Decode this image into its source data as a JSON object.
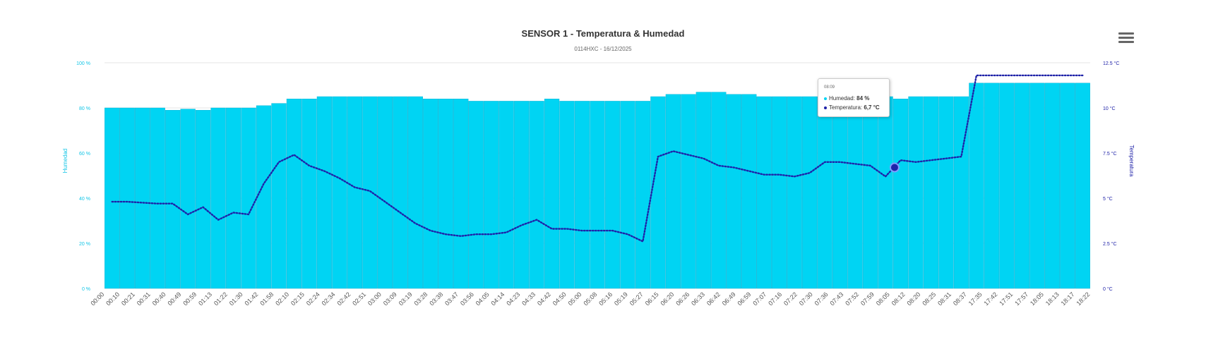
{
  "header": {
    "title": "SENSOR 1 - Temperatura & Humedad",
    "subtitle": "0114HXC - 16/12/2025",
    "menu_icon": "hamburger-menu-icon"
  },
  "colors": {
    "humidity": "#00d4f3",
    "humidity_border": "#0aaed1",
    "temperature": "#1f22a8",
    "left_axis_label": "#12c5e6",
    "right_axis_label": "#1f22a8",
    "grid": "#e6e6e6"
  },
  "tooltip": {
    "time": "08:09",
    "humidity_label": "Humedad:",
    "humidity_value": "84 %",
    "temperature_label": "Temperatura:",
    "temperature_value": "6,7 °C"
  },
  "chart_data": {
    "type": "bar",
    "xlabel": "",
    "ylabel": "Humedad",
    "y2label": "Temperatura",
    "ylim": [
      0,
      100
    ],
    "y2lim": [
      0,
      12.5
    ],
    "yticks": [
      "0 %",
      "20 %",
      "40 %",
      "60 %",
      "80 %",
      "100 %"
    ],
    "y2ticks": [
      "0 °C",
      "2.5 °C",
      "5 °C",
      "7.5 °C",
      "10 °C",
      "12.5 °C"
    ],
    "grid": true,
    "legend": "none",
    "categories": [
      "00:00",
      "00:10",
      "00:21",
      "00:31",
      "00:40",
      "00:49",
      "00:59",
      "01:13",
      "01:22",
      "01:30",
      "01:42",
      "01:58",
      "02:10",
      "02:15",
      "02:24",
      "02:34",
      "02:42",
      "02:51",
      "03:00",
      "03:09",
      "03:19",
      "03:28",
      "03:38",
      "03:47",
      "03:56",
      "04:05",
      "04:14",
      "04:23",
      "04:33",
      "04:42",
      "04:50",
      "05:00",
      "05:08",
      "05:16",
      "05:19",
      "05:27",
      "06:15",
      "06:20",
      "06:26",
      "06:33",
      "06:42",
      "06:49",
      "06:59",
      "07:07",
      "07:16",
      "07:22",
      "07:30",
      "07:36",
      "07:43",
      "07:52",
      "07:59",
      "08:05",
      "08:12",
      "08:20",
      "08:25",
      "08:31",
      "08:37",
      "17:35",
      "17:42",
      "17:51",
      "17:57",
      "18:05",
      "18:13",
      "18:17",
      "18:22"
    ],
    "series": [
      {
        "name": "Humedad",
        "type": "bar",
        "axis": "left",
        "values": [
          80,
          80,
          80,
          80,
          79,
          79.5,
          79,
          80,
          80,
          80,
          81,
          82,
          84,
          84,
          85,
          85,
          85,
          85,
          85,
          85,
          85,
          84,
          84,
          84,
          83,
          83,
          83,
          83,
          83,
          84,
          83,
          83,
          83,
          83,
          83,
          83,
          85,
          86,
          86,
          87,
          87,
          86,
          86,
          85,
          85,
          85,
          85,
          85,
          85,
          85,
          85,
          85,
          84,
          85,
          85,
          85,
          85,
          91,
          91,
          91,
          91,
          91,
          91,
          91,
          91
        ]
      },
      {
        "name": "Temperatura",
        "type": "line",
        "axis": "right",
        "values": [
          4.8,
          4.8,
          4.75,
          4.7,
          4.7,
          4.1,
          4.5,
          3.8,
          4.2,
          4.1,
          5.8,
          7,
          7.4,
          6.8,
          6.5,
          6.1,
          5.6,
          5.4,
          4.8,
          4.2,
          3.6,
          3.2,
          3.0,
          2.9,
          3.0,
          3.0,
          3.1,
          3.5,
          3.8,
          3.3,
          3.3,
          3.2,
          3.2,
          3.2,
          3.0,
          2.6,
          7.3,
          7.6,
          7.4,
          7.2,
          6.8,
          6.7,
          6.5,
          6.3,
          6.3,
          6.2,
          6.4,
          7.0,
          7.0,
          6.9,
          6.8,
          6.2,
          7.1,
          7.0,
          7.1,
          7.2,
          7.3,
          11.8,
          11.8,
          11.8,
          11.8,
          11.8,
          11.8,
          11.8,
          11.8
        ]
      }
    ]
  }
}
